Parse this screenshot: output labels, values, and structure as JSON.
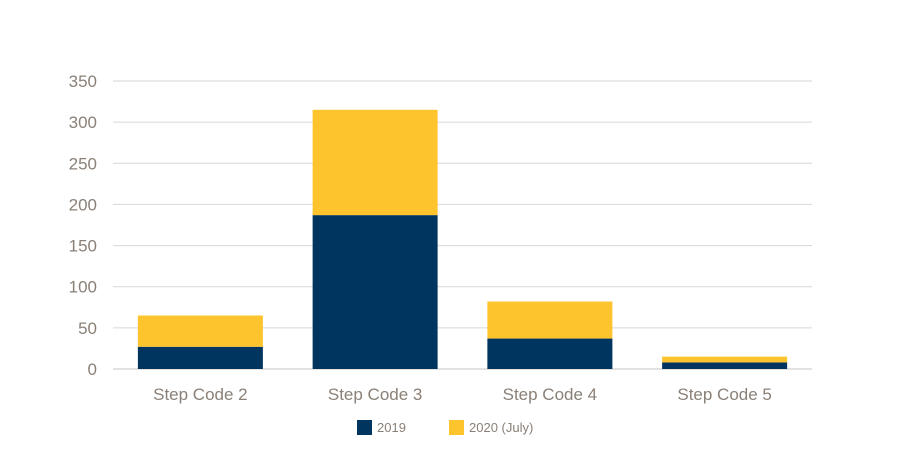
{
  "chart_data": {
    "type": "bar",
    "stacked": true,
    "categories": [
      "Step Code 2",
      "Step Code 3",
      "Step Code 4",
      "Step Code 5"
    ],
    "series": [
      {
        "name": "2019",
        "color": "#00355f",
        "values": [
          27,
          187,
          37,
          8
        ]
      },
      {
        "name": "2020 (July)",
        "color": "#fdc42d",
        "values": [
          38,
          128,
          45,
          7
        ]
      }
    ],
    "ylim": [
      0,
      350
    ],
    "yticks": [
      0,
      50,
      100,
      150,
      200,
      250,
      300,
      350
    ],
    "grid": true,
    "legend": "bottom-center",
    "title": "",
    "xlabel": "",
    "ylabel": ""
  }
}
